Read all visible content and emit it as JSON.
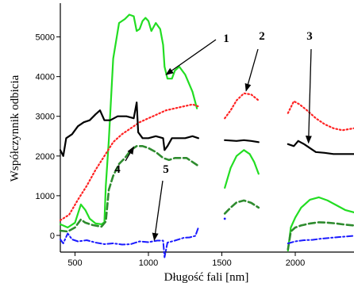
{
  "chart_data": {
    "type": "line",
    "title": "",
    "xlabel": "Długość fali [nm]",
    "ylabel": "Współczynnik odbicia",
    "xlim": [
      400,
      2400
    ],
    "ylim": [
      -420,
      5850
    ],
    "x_ticks": [
      500,
      1000,
      1500,
      2000
    ],
    "x_tick_labels": [
      "500",
      "1000",
      "1500",
      "2000"
    ],
    "y_ticks": [
      0,
      1000,
      2000,
      3000,
      4000,
      5000
    ],
    "y_tick_labels": [
      "0",
      "1000",
      "2000",
      "3000",
      "4000",
      "5000"
    ],
    "grid": false,
    "legend": "none",
    "series": [
      {
        "id": "1",
        "color": "#22dd22",
        "style": "solid",
        "segments": [
          [
            [
              400,
              280
            ],
            [
              450,
              200
            ],
            [
              500,
              320
            ],
            [
              540,
              780
            ],
            [
              570,
              640
            ],
            [
              600,
              420
            ],
            [
              640,
              300
            ],
            [
              680,
              280
            ],
            [
              700,
              330
            ],
            [
              710,
              1250
            ],
            [
              730,
              2400
            ],
            [
              760,
              4450
            ],
            [
              800,
              5350
            ],
            [
              840,
              5450
            ],
            [
              870,
              5560
            ],
            [
              900,
              5520
            ],
            [
              920,
              5150
            ],
            [
              940,
              5200
            ],
            [
              960,
              5400
            ],
            [
              980,
              5480
            ],
            [
              1000,
              5400
            ],
            [
              1020,
              5150
            ],
            [
              1050,
              5350
            ],
            [
              1080,
              5200
            ],
            [
              1100,
              4800
            ],
            [
              1110,
              4250
            ],
            [
              1130,
              3950
            ],
            [
              1160,
              3950
            ],
            [
              1180,
              4150
            ],
            [
              1210,
              4250
            ],
            [
              1250,
              4050
            ],
            [
              1300,
              3620
            ],
            [
              1330,
              3200
            ]
          ],
          [
            [
              1520,
              1200
            ],
            [
              1560,
              1700
            ],
            [
              1600,
              2000
            ],
            [
              1650,
              2150
            ],
            [
              1690,
              2050
            ],
            [
              1720,
              1850
            ],
            [
              1750,
              1550
            ]
          ],
          [
            [
              1950,
              -380
            ],
            [
              1970,
              200
            ],
            [
              2000,
              450
            ],
            [
              2040,
              700
            ],
            [
              2100,
              900
            ],
            [
              2160,
              960
            ],
            [
              2220,
              880
            ],
            [
              2280,
              760
            ],
            [
              2340,
              640
            ],
            [
              2400,
              580
            ]
          ]
        ]
      },
      {
        "id": "2",
        "color": "#ff2222",
        "style": "dotted",
        "segments": [
          [
            [
              400,
              380
            ],
            [
              460,
              520
            ],
            [
              520,
              900
            ],
            [
              580,
              1250
            ],
            [
              640,
              1650
            ],
            [
              700,
              2000
            ],
            [
              760,
              2350
            ],
            [
              820,
              2550
            ],
            [
              880,
              2700
            ],
            [
              940,
              2850
            ],
            [
              1000,
              2950
            ],
            [
              1060,
              3050
            ],
            [
              1120,
              3150
            ],
            [
              1180,
              3200
            ],
            [
              1240,
              3250
            ],
            [
              1300,
              3300
            ],
            [
              1340,
              3250
            ]
          ],
          [
            [
              1520,
              2950
            ],
            [
              1560,
              3150
            ],
            [
              1600,
              3400
            ],
            [
              1650,
              3580
            ],
            [
              1700,
              3550
            ],
            [
              1750,
              3400
            ]
          ],
          [
            [
              1950,
              3080
            ],
            [
              1990,
              3380
            ],
            [
              2030,
              3300
            ],
            [
              2080,
              3150
            ],
            [
              2140,
              2950
            ],
            [
              2200,
              2800
            ],
            [
              2260,
              2700
            ],
            [
              2320,
              2650
            ],
            [
              2400,
              2700
            ]
          ]
        ]
      },
      {
        "id": "3",
        "color": "#000000",
        "style": "solid",
        "segments": [
          [
            [
              400,
              2150
            ],
            [
              420,
              2000
            ],
            [
              440,
              2450
            ],
            [
              480,
              2550
            ],
            [
              520,
              2750
            ],
            [
              560,
              2850
            ],
            [
              600,
              2900
            ],
            [
              640,
              3050
            ],
            [
              670,
              3150
            ],
            [
              700,
              2900
            ],
            [
              740,
              2900
            ],
            [
              790,
              3000
            ],
            [
              850,
              3000
            ],
            [
              900,
              2950
            ],
            [
              920,
              3350
            ],
            [
              930,
              2600
            ],
            [
              960,
              2450
            ],
            [
              1000,
              2450
            ],
            [
              1050,
              2500
            ],
            [
              1100,
              2450
            ],
            [
              1110,
              2150
            ],
            [
              1130,
              2250
            ],
            [
              1160,
              2450
            ],
            [
              1200,
              2450
            ],
            [
              1250,
              2450
            ],
            [
              1300,
              2500
            ],
            [
              1340,
              2450
            ]
          ],
          [
            [
              1520,
              2400
            ],
            [
              1600,
              2380
            ],
            [
              1650,
              2400
            ],
            [
              1700,
              2380
            ],
            [
              1750,
              2350
            ]
          ],
          [
            [
              1950,
              2300
            ],
            [
              1990,
              2250
            ],
            [
              2020,
              2380
            ],
            [
              2060,
              2300
            ],
            [
              2100,
              2200
            ],
            [
              2140,
              2100
            ],
            [
              2200,
              2080
            ],
            [
              2260,
              2050
            ],
            [
              2320,
              2050
            ],
            [
              2400,
              2050
            ]
          ]
        ]
      },
      {
        "id": "4",
        "color": "#2e8b2e",
        "style": "dashed",
        "segments": [
          [
            [
              400,
              120
            ],
            [
              450,
              100
            ],
            [
              500,
              200
            ],
            [
              540,
              400
            ],
            [
              570,
              320
            ],
            [
              620,
              260
            ],
            [
              680,
              220
            ],
            [
              710,
              350
            ],
            [
              730,
              1150
            ],
            [
              760,
              1500
            ],
            [
              800,
              1800
            ],
            [
              840,
              1950
            ],
            [
              880,
              2150
            ],
            [
              920,
              2250
            ],
            [
              960,
              2250
            ],
            [
              1000,
              2200
            ],
            [
              1050,
              2100
            ],
            [
              1100,
              1950
            ],
            [
              1140,
              1900
            ],
            [
              1180,
              1950
            ],
            [
              1220,
              1950
            ],
            [
              1260,
              1950
            ],
            [
              1300,
              1850
            ],
            [
              1340,
              1750
            ]
          ],
          [
            [
              1520,
              550
            ],
            [
              1560,
              700
            ],
            [
              1600,
              830
            ],
            [
              1650,
              880
            ],
            [
              1700,
              820
            ],
            [
              1750,
              700
            ]
          ],
          [
            [
              1950,
              -350
            ],
            [
              1970,
              100
            ],
            [
              2000,
              200
            ],
            [
              2040,
              250
            ],
            [
              2100,
              300
            ],
            [
              2160,
              330
            ],
            [
              2220,
              320
            ],
            [
              2280,
              300
            ],
            [
              2340,
              270
            ],
            [
              2400,
              250
            ]
          ]
        ]
      },
      {
        "id": "5",
        "color": "#1a1aff",
        "style": "dashdot",
        "segments": [
          [
            [
              400,
              -100
            ],
            [
              420,
              -200
            ],
            [
              450,
              50
            ],
            [
              480,
              -100
            ],
            [
              520,
              -150
            ],
            [
              580,
              -120
            ],
            [
              640,
              -180
            ],
            [
              700,
              -220
            ],
            [
              760,
              -200
            ],
            [
              820,
              -230
            ],
            [
              880,
              -220
            ],
            [
              940,
              -150
            ],
            [
              1000,
              -170
            ],
            [
              1060,
              -130
            ],
            [
              1100,
              -130
            ],
            [
              1110,
              -550
            ],
            [
              1130,
              -180
            ],
            [
              1180,
              -130
            ],
            [
              1240,
              -60
            ],
            [
              1280,
              -50
            ],
            [
              1320,
              -10
            ],
            [
              1340,
              200
            ]
          ],
          [
            [
              1520,
              420
            ]
          ],
          [
            [
              1950,
              -200
            ],
            [
              2000,
              -150
            ],
            [
              2060,
              -120
            ],
            [
              2120,
              -110
            ],
            [
              2180,
              -80
            ],
            [
              2240,
              -60
            ],
            [
              2300,
              -40
            ],
            [
              2400,
              -10
            ]
          ]
        ]
      }
    ],
    "annotations": [
      {
        "label": "1",
        "arrow_to": [
          1120,
          4050
        ]
      },
      {
        "label": "2",
        "arrow_to": [
          1665,
          3640
        ]
      },
      {
        "label": "3",
        "arrow_to": [
          2090,
          2330
        ]
      },
      {
        "label": "4",
        "arrow_to": [
          900,
          2230
        ]
      },
      {
        "label": "5",
        "arrow_to": [
          1040,
          -120
        ]
      }
    ]
  }
}
